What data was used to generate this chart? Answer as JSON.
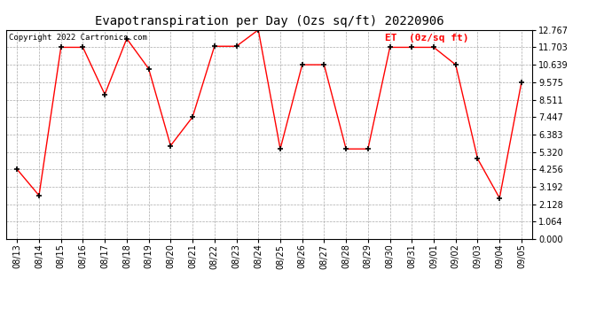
{
  "title": "Evapotranspiration per Day (Ozs sq/ft) 20220906",
  "copyright": "Copyright 2022 Cartronics.com",
  "legend_label": "ET  (0z/sq ft)",
  "dates": [
    "08/13",
    "08/14",
    "08/15",
    "08/16",
    "08/17",
    "08/18",
    "08/19",
    "08/20",
    "08/21",
    "08/22",
    "08/23",
    "08/24",
    "08/25",
    "08/26",
    "08/27",
    "08/28",
    "08/29",
    "08/30",
    "08/31",
    "09/01",
    "09/02",
    "09/03",
    "09/04",
    "09/05"
  ],
  "values": [
    4.256,
    2.66,
    11.703,
    11.703,
    8.83,
    12.232,
    10.4,
    5.7,
    7.447,
    11.767,
    11.767,
    12.767,
    5.5,
    10.639,
    10.639,
    5.5,
    5.5,
    11.703,
    11.703,
    11.703,
    10.639,
    4.9,
    2.5,
    9.575
  ],
  "line_color": "#FF0000",
  "marker_color": "#000000",
  "background_color": "#FFFFFF",
  "grid_color": "#AAAAAA",
  "title_color": "#000000",
  "copyright_color": "#000000",
  "legend_color": "#FF0000",
  "ylim": [
    0.0,
    12.767
  ],
  "yticks": [
    0.0,
    1.064,
    2.128,
    3.192,
    4.256,
    5.32,
    6.383,
    7.447,
    8.511,
    9.575,
    10.639,
    11.703,
    12.767
  ]
}
